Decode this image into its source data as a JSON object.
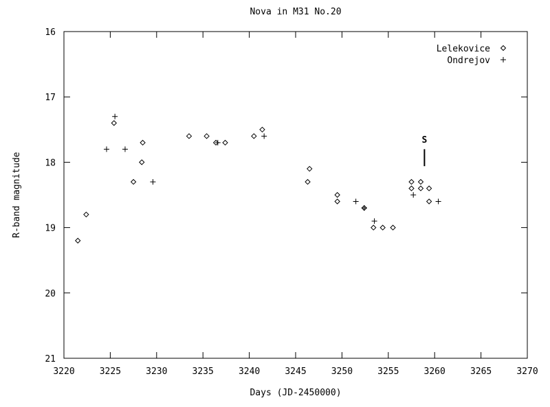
{
  "chart_data": {
    "type": "scatter",
    "title": "Nova in M31 No.20",
    "xlabel": "Days (JD-2450000)",
    "ylabel": "R-band magnitude",
    "xlim": [
      3220,
      3270
    ],
    "ylim": [
      16,
      21
    ],
    "y_inverted": true,
    "x_ticks": [
      3220,
      3225,
      3230,
      3235,
      3240,
      3245,
      3250,
      3255,
      3260,
      3265,
      3270
    ],
    "y_ticks": [
      16,
      17,
      18,
      19,
      20,
      21
    ],
    "grid": false,
    "legend_position": "top-right",
    "series": [
      {
        "name": "Lelekovice",
        "marker": "diamond",
        "points": [
          [
            3221.5,
            19.2
          ],
          [
            3222.4,
            18.8
          ],
          [
            3225.4,
            17.4
          ],
          [
            3227.5,
            18.3
          ],
          [
            3228.4,
            18.0
          ],
          [
            3228.5,
            17.7
          ],
          [
            3233.5,
            17.6
          ],
          [
            3235.4,
            17.6
          ],
          [
            3236.4,
            17.7
          ],
          [
            3237.4,
            17.7
          ],
          [
            3240.5,
            17.6
          ],
          [
            3241.4,
            17.5
          ],
          [
            3246.3,
            18.3
          ],
          [
            3246.5,
            18.1
          ],
          [
            3249.5,
            18.5
          ],
          [
            3249.5,
            18.6
          ],
          [
            3252.4,
            18.7
          ],
          [
            3253.4,
            19.0
          ],
          [
            3254.4,
            19.0
          ],
          [
            3255.5,
            19.0
          ],
          [
            3257.5,
            18.3
          ],
          [
            3257.5,
            18.4
          ],
          [
            3258.5,
            18.3
          ],
          [
            3258.5,
            18.4
          ],
          [
            3259.4,
            18.4
          ],
          [
            3259.4,
            18.6
          ]
        ]
      },
      {
        "name": "Ondrejov",
        "marker": "plus",
        "points": [
          [
            3224.6,
            17.8
          ],
          [
            3225.5,
            17.3
          ],
          [
            3226.6,
            17.8
          ],
          [
            3229.6,
            18.3
          ],
          [
            3236.6,
            17.7
          ],
          [
            3241.6,
            17.6
          ],
          [
            3251.5,
            18.6
          ],
          [
            3252.4,
            18.7
          ],
          [
            3253.5,
            18.9
          ],
          [
            3257.7,
            18.5
          ],
          [
            3260.4,
            18.6
          ]
        ]
      }
    ],
    "annotations": [
      {
        "text": "S",
        "x": 3258.9,
        "y": 17.65,
        "line_from": 17.8,
        "line_to": 18.06
      }
    ]
  }
}
